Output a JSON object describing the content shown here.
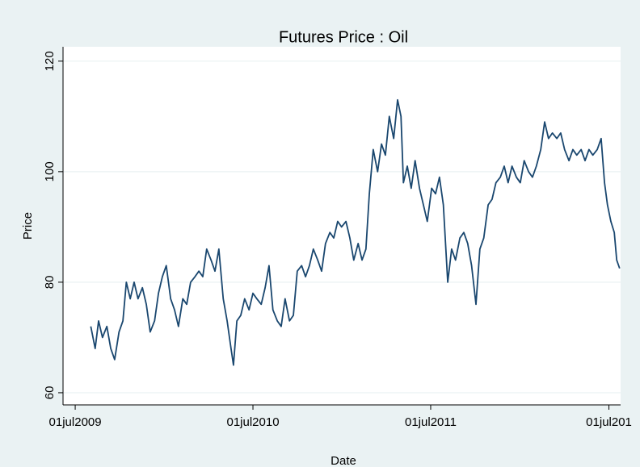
{
  "chart_data": {
    "type": "line",
    "title": "Futures Price : Oil",
    "x_label": "Date",
    "y_label": "Price",
    "x": [
      18111,
      18120,
      18127,
      18135,
      18144,
      18152,
      18160,
      18169,
      18177,
      18184,
      18192,
      18200,
      18208,
      18217,
      18225,
      18233,
      18242,
      18250,
      18258,
      18266,
      18275,
      18283,
      18291,
      18300,
      18308,
      18316,
      18325,
      18333,
      18341,
      18349,
      18358,
      18366,
      18374,
      18383,
      18391,
      18399,
      18404,
      18411,
      18419,
      18427,
      18436,
      18444,
      18452,
      18461,
      18469,
      18477,
      18485,
      18494,
      18502,
      18510,
      18519,
      18527,
      18535,
      18544,
      18552,
      18560,
      18568,
      18577,
      18585,
      18593,
      18602,
      18610,
      18618,
      18626,
      18635,
      18643,
      18651,
      18660,
      18668,
      18676,
      18683,
      18691,
      18700,
      18708,
      18716,
      18724,
      18733,
      18741,
      18748,
      18753,
      18761,
      18769,
      18777,
      18786,
      18794,
      18802,
      18811,
      18819,
      18827,
      18835,
      18844,
      18852,
      18860,
      18869,
      18877,
      18885,
      18893,
      18902,
      18910,
      18918,
      18927,
      18935,
      18943,
      18952,
      18960,
      18968,
      18976,
      18985,
      18993,
      19001,
      19010,
      19018,
      19026,
      19035,
      19043,
      19051,
      19059,
      19068,
      19076,
      19084,
      19093,
      19101,
      19109,
      19118,
      19126,
      19134,
      19142,
      19151,
      19159,
      19166,
      19172,
      19179,
      19186,
      19191,
      19197
    ],
    "values": [
      72,
      68,
      73,
      70,
      72,
      68,
      66,
      71,
      73,
      80,
      77,
      80,
      77,
      79,
      76,
      71,
      73,
      78,
      81,
      83,
      77,
      75,
      72,
      77,
      76,
      80,
      81,
      82,
      81,
      86,
      84,
      82,
      86,
      77,
      73,
      68,
      65,
      73,
      74,
      77,
      75,
      78,
      77,
      76,
      79,
      83,
      75,
      73,
      72,
      77,
      73,
      74,
      82,
      83,
      81,
      83,
      86,
      84,
      82,
      87,
      89,
      88,
      91,
      90,
      91,
      88,
      84,
      87,
      84,
      86,
      96,
      104,
      100,
      105,
      103,
      110,
      106,
      113,
      110,
      98,
      101,
      97,
      102,
      97,
      94,
      91,
      97,
      96,
      99,
      94,
      80,
      86,
      84,
      88,
      89,
      87,
      83,
      76,
      86,
      88,
      94,
      95,
      98,
      99,
      101,
      98,
      101,
      99,
      98,
      102,
      100,
      99,
      101,
      104,
      109,
      106,
      107,
      106,
      107,
      104,
      102,
      104,
      103,
      104,
      102,
      104,
      103,
      104,
      106,
      98,
      94,
      91,
      89,
      84,
      82.5
    ],
    "color": "#1a476f",
    "xlim": [
      18054,
      19199
    ],
    "xticks": [
      {
        "value": 18079,
        "label": "01jul2009"
      },
      {
        "value": 18444,
        "label": "01jul2010"
      },
      {
        "value": 18809,
        "label": "01jul2011"
      },
      {
        "value": 19175,
        "label": "01jul201"
      }
    ],
    "ylim": [
      57.8,
      122.6
    ],
    "yticks": [
      60,
      80,
      100,
      120
    ],
    "grid": true
  }
}
